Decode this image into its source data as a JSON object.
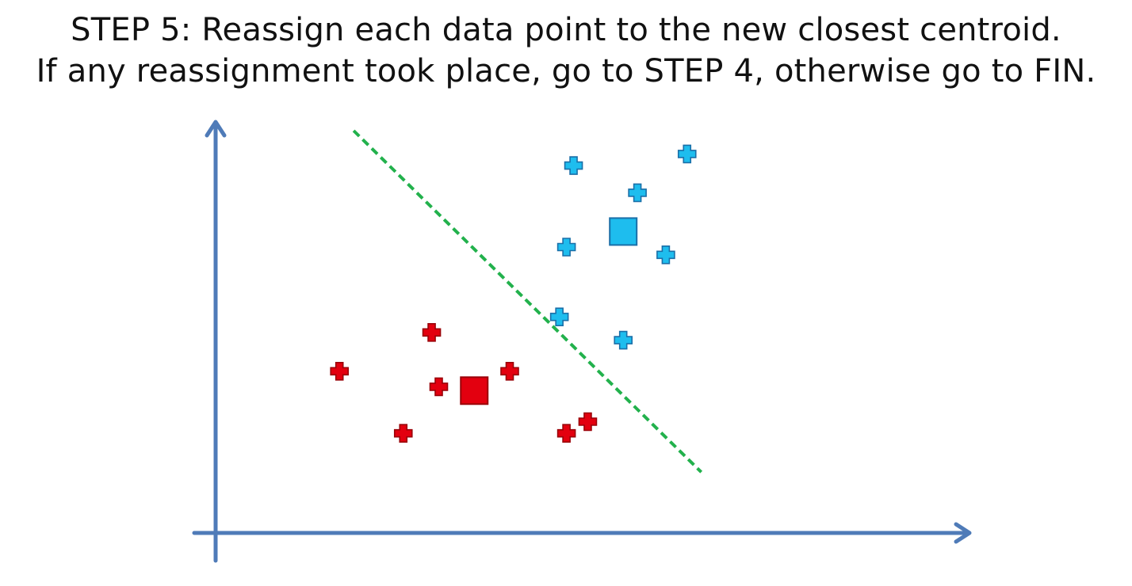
{
  "title": {
    "step_label": "STEP 5:",
    "line1_rest": " Reassign each data point to the new closest centroid.",
    "line2": "If any reassignment took place, go to STEP 4, otherwise go to FIN."
  },
  "colors": {
    "axis": "#4f7bb8",
    "boundary": "#22b14c",
    "cluster_blue_fill": "#1ebdee",
    "cluster_blue_stroke": "#1a6fa8",
    "cluster_red_fill": "#e3000f",
    "cluster_red_stroke": "#9a0008"
  },
  "diagram": {
    "x_range": [
      0,
      100
    ],
    "y_range": [
      0,
      100
    ],
    "boundary_line": {
      "from": [
        18,
        100
      ],
      "to": [
        67,
        12
      ],
      "style": "dashed"
    },
    "clusters": [
      {
        "name": "blue",
        "centroid": [
          56,
          74
        ],
        "points": [
          [
            49,
            91
          ],
          [
            58,
            84
          ],
          [
            65,
            94
          ],
          [
            48,
            70
          ],
          [
            62,
            68
          ],
          [
            47,
            52
          ],
          [
            56,
            46
          ]
        ]
      },
      {
        "name": "red",
        "centroid": [
          35,
          33
        ],
        "points": [
          [
            29,
            48
          ],
          [
            16,
            38
          ],
          [
            30,
            34
          ],
          [
            40,
            38
          ],
          [
            25,
            22
          ],
          [
            48,
            22
          ],
          [
            51,
            25
          ]
        ]
      }
    ]
  }
}
